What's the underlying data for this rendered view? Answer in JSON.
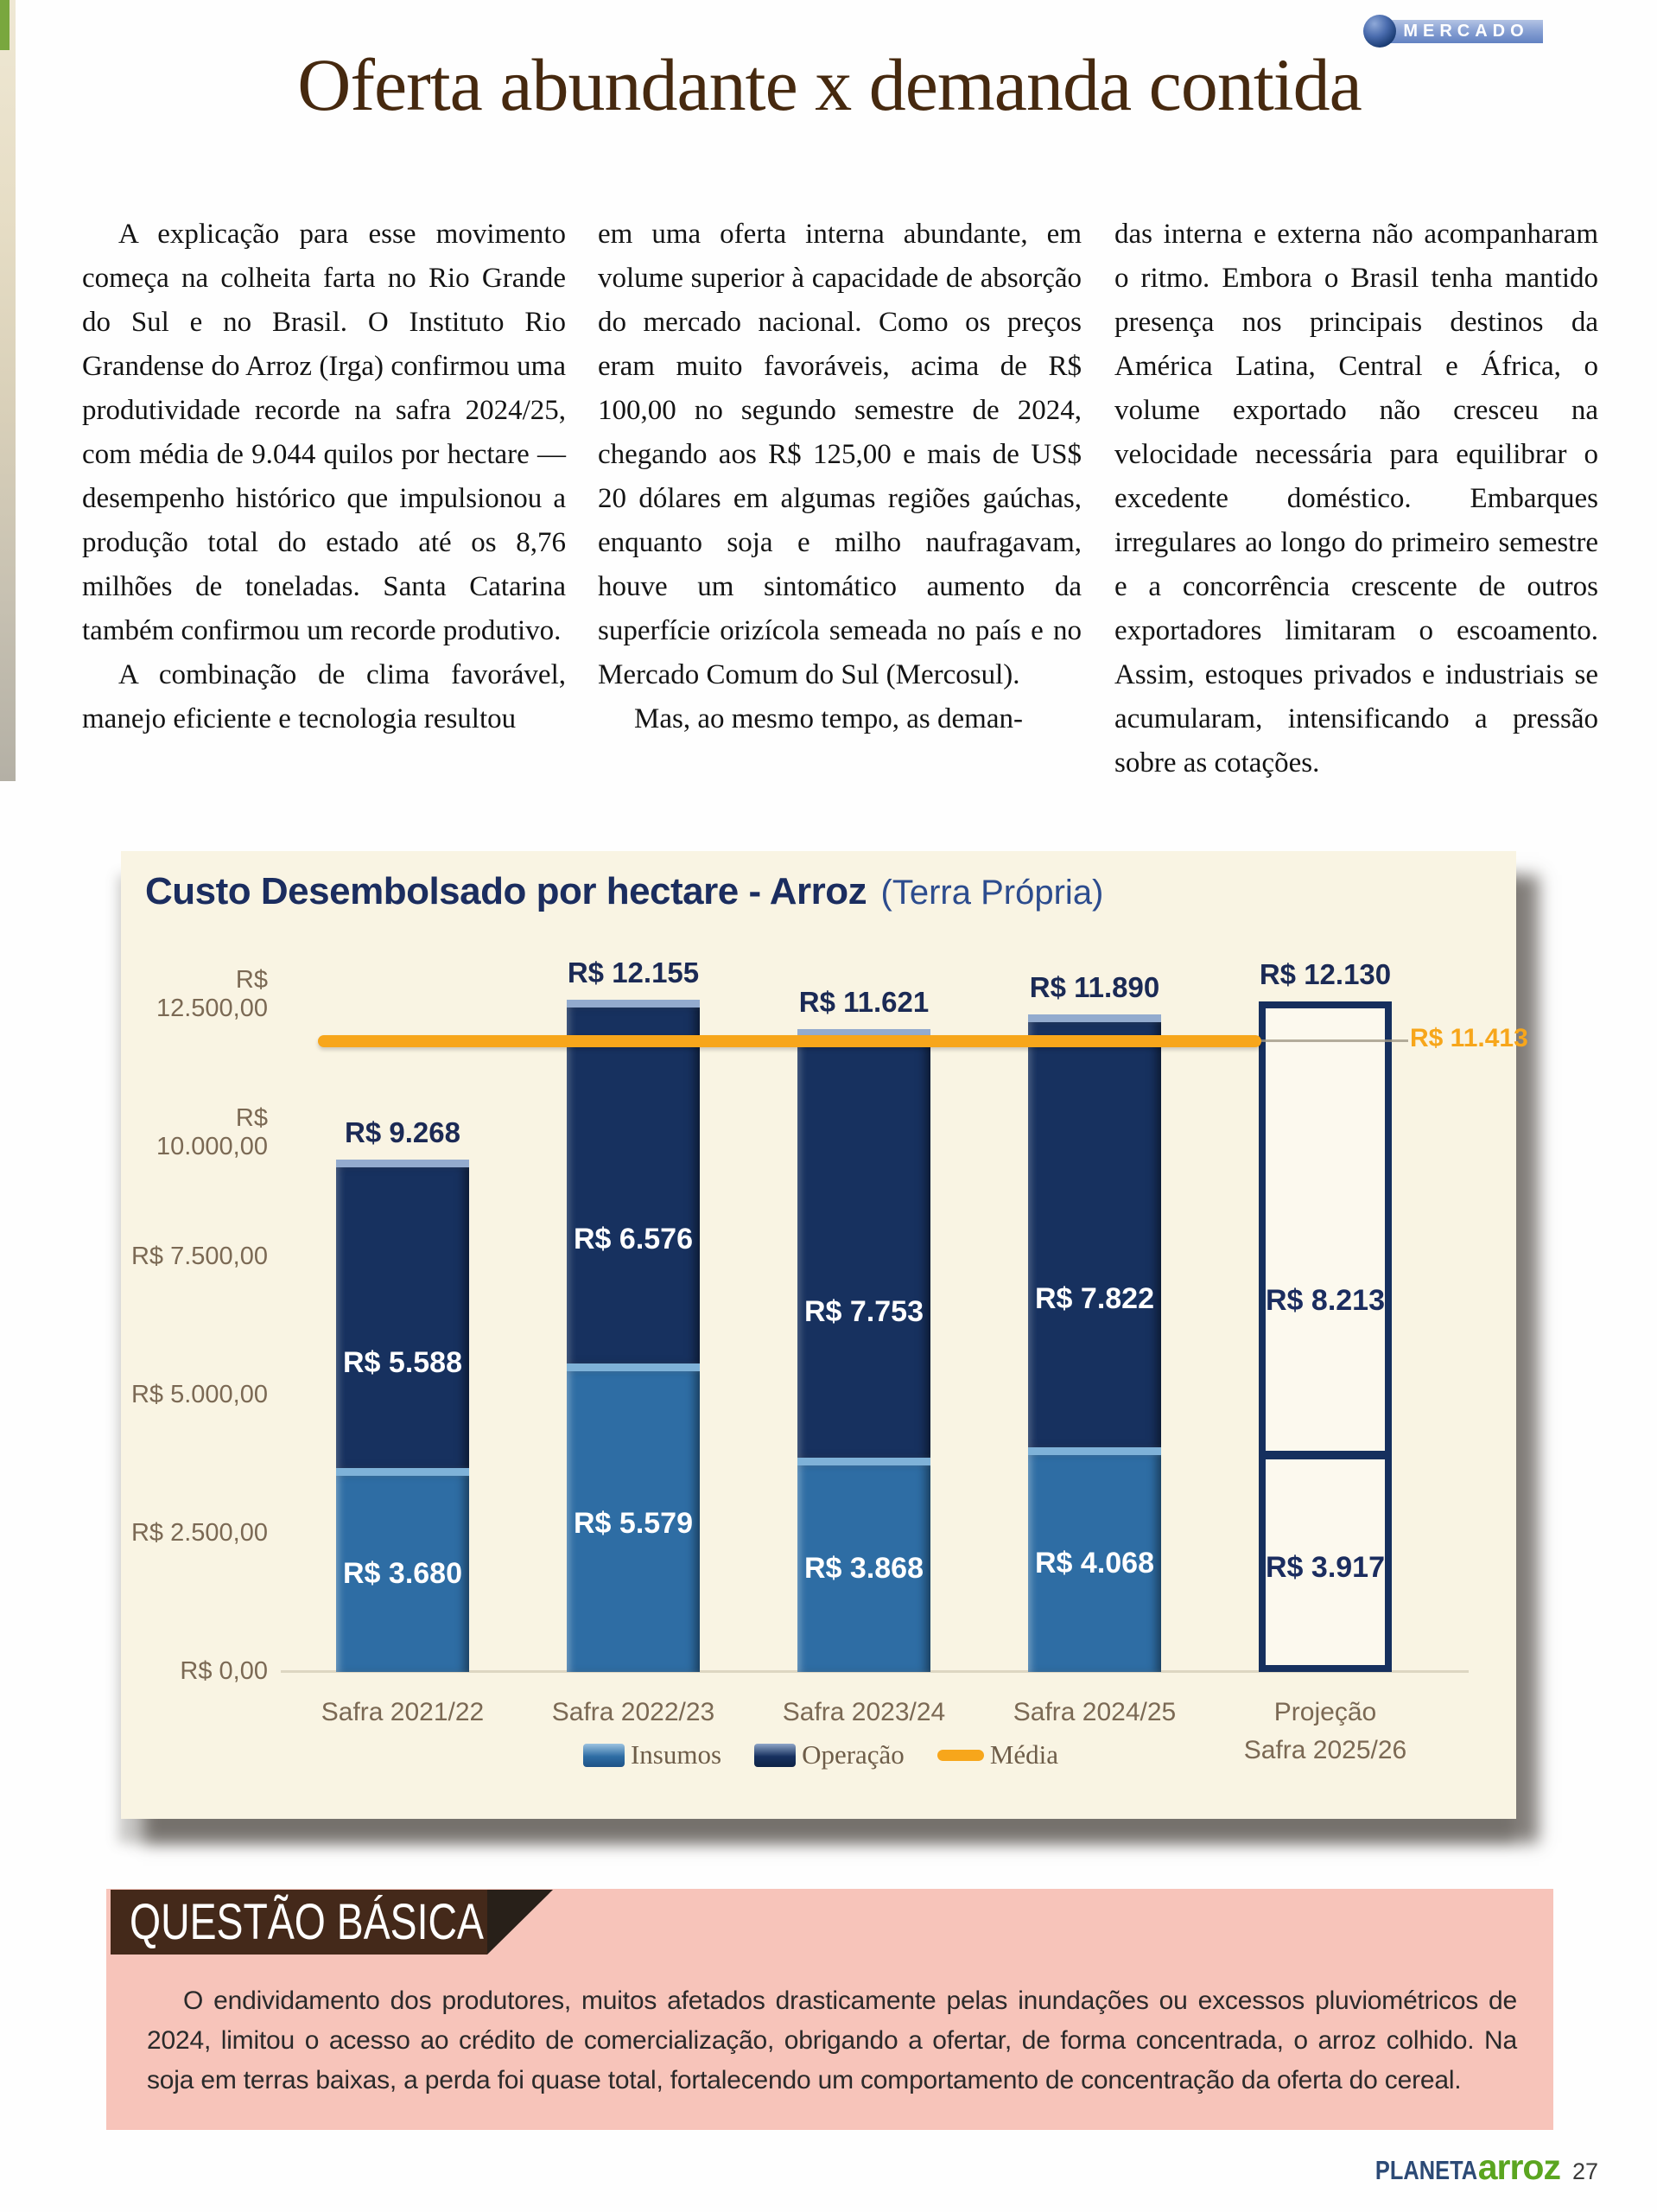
{
  "page": {
    "badge": "MERCADO",
    "title": "Oferta abundante x demanda contida"
  },
  "article": {
    "col1": {
      "p1": "A explicação para esse movimento começa na colheita farta no Rio Grande do Sul e no Brasil. O Instituto Rio Grandense do Arroz (Irga) confirmou uma produtividade recorde na safra 2024/25, com média de 9.044 quilos por hectare — desempenho histórico que impulsionou a produção total do estado até os 8,76 milhões de toneladas. Santa Catarina também confirmou um recorde produtivo.",
      "p2": "A combinação de clima favorável, manejo eficiente e tecnologia resultou"
    },
    "col2": {
      "p1": "em uma oferta interna abundante, em volume superior à capacidade de absorção do mercado nacional. Como os preços eram muito favoráveis, acima de R$ 100,00 no segundo semestre de 2024, chegando aos R$ 125,00 e mais de US$ 20 dólares em algumas regiões gaúchas, enquanto soja e milho naufragavam, houve um sintomático aumento da superfície orizícola semeada no país e no Mercado Comum do Sul (Mercosul).",
      "p2": "Mas, ao mesmo tempo, as deman-"
    },
    "col3": {
      "p1": "das interna e externa não acompanharam o ritmo. Embora o Brasil tenha mantido presença nos principais destinos da América Latina, Central e África, o volume exportado não cresceu na velocidade necessária para equilibrar o excedente doméstico. Embarques irregulares ao longo do primeiro semestre e a concorrência crescente de outros exportadores limitaram o escoamento. Assim, estoques privados e industriais se acumularam, intensificando a pressão sobre as cotações."
    }
  },
  "chart_data": {
    "type": "bar",
    "stacked": true,
    "title": "Custo Desembolsado por hectare - Arroz",
    "subtitle": "(Terra Própria)",
    "categories": [
      "Safra 2021/22",
      "Safra 2022/23",
      "Safra 2023/24",
      "Safra 2024/25",
      "Projeção\nSafra 2025/26"
    ],
    "series": [
      {
        "name": "Insumos",
        "color": "#2e6da4",
        "cap_color": "#7fb2d8",
        "values": [
          3680,
          5579,
          3868,
          4068,
          3917
        ],
        "labels": [
          "R$ 3.680",
          "R$ 5.579",
          "R$ 3.868",
          "R$ 4.068",
          "R$ 3.917"
        ]
      },
      {
        "name": "Operação",
        "color": "#17315f",
        "cap_color": "#93abce",
        "values": [
          5588,
          6576,
          7753,
          7822,
          8213
        ],
        "labels": [
          "R$ 5.588",
          "R$ 6.576",
          "R$ 7.753",
          "R$ 7.822",
          "R$ 8.213"
        ]
      }
    ],
    "totals": {
      "values": [
        9268,
        12155,
        11621,
        11890,
        12130
      ],
      "labels": [
        "R$ 9.268",
        "R$ 12.155",
        "R$ 11.621",
        "R$ 11.890",
        "R$ 12.130"
      ]
    },
    "mean": {
      "name": "Média",
      "value": 11413,
      "label": "R$ 11.413",
      "color": "#f7a61b"
    },
    "y_ticks": [
      "R$ 12.500,00",
      "R$ 10.000,00",
      "R$ 7.500,00",
      "R$ 5.000,00",
      "R$ 2.500,00",
      "R$ 0,00"
    ],
    "y_tick_values": [
      12500,
      10000,
      7500,
      5000,
      2500,
      0
    ],
    "ylim": [
      0,
      13100
    ],
    "grid": false,
    "legend_position": "bottom",
    "projection_index": 4,
    "projection_style": {
      "fill": "#fcf9ee",
      "border": "#16305e",
      "label_color": "#1b2d5f"
    }
  },
  "question_box": {
    "title": "QUESTÃO BÁSICA",
    "text": "O endividamento dos produtores, muitos afetados drasticamente pelas inundações ou excessos pluviométricos de 2024, limitou o acesso ao crédito de comercialização, obrigando a ofertar, de forma concentrada, o arroz colhido. Na soja em terras baixas, a perda foi quase total, fortalecendo um comportamento de concentração da oferta do cereal."
  },
  "footer": {
    "brand1": "PLANETA",
    "brand2": "arroz",
    "page_number": "27"
  }
}
